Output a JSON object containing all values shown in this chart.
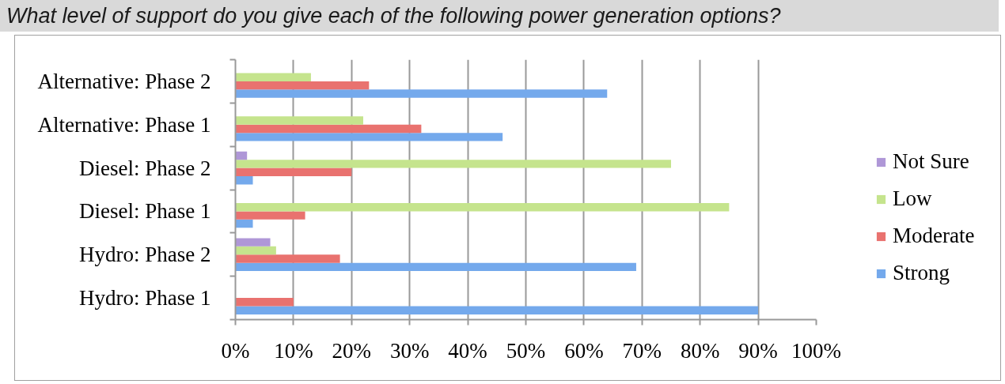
{
  "chart_data": {
    "type": "bar",
    "orientation": "horizontal",
    "title": "What level of support do you give each of the following power generation options?",
    "categories": [
      "Alternative: Phase 2",
      "Alternative: Phase 1",
      "Diesel: Phase 2",
      "Diesel: Phase 1",
      "Hydro: Phase 2",
      "Hydro: Phase 1"
    ],
    "series": [
      {
        "name": "Strong",
        "color": "#74a9ec",
        "values": [
          64,
          46,
          3,
          3,
          69,
          90
        ]
      },
      {
        "name": "Moderate",
        "color": "#e9726f",
        "values": [
          23,
          32,
          20,
          12,
          18,
          10
        ]
      },
      {
        "name": "Low",
        "color": "#c5e48d",
        "values": [
          13,
          22,
          75,
          85,
          7,
          null
        ]
      },
      {
        "name": "Not Sure",
        "color": "#af97d7",
        "values": [
          null,
          null,
          2,
          null,
          6,
          null
        ]
      }
    ],
    "xlim": [
      0,
      100
    ],
    "xticks": [
      {
        "value": 0,
        "label": "0%"
      },
      {
        "value": 10,
        "label": "10%"
      },
      {
        "value": 20,
        "label": "20%"
      },
      {
        "value": 30,
        "label": "30%"
      },
      {
        "value": 40,
        "label": "40%"
      },
      {
        "value": 50,
        "label": "50%"
      },
      {
        "value": 60,
        "label": "60%"
      },
      {
        "value": 70,
        "label": "70%"
      },
      {
        "value": 80,
        "label": "80%"
      },
      {
        "value": 90,
        "label": "90%"
      },
      {
        "value": 100,
        "label": "100%"
      }
    ],
    "grid": "x",
    "legend": "right"
  }
}
